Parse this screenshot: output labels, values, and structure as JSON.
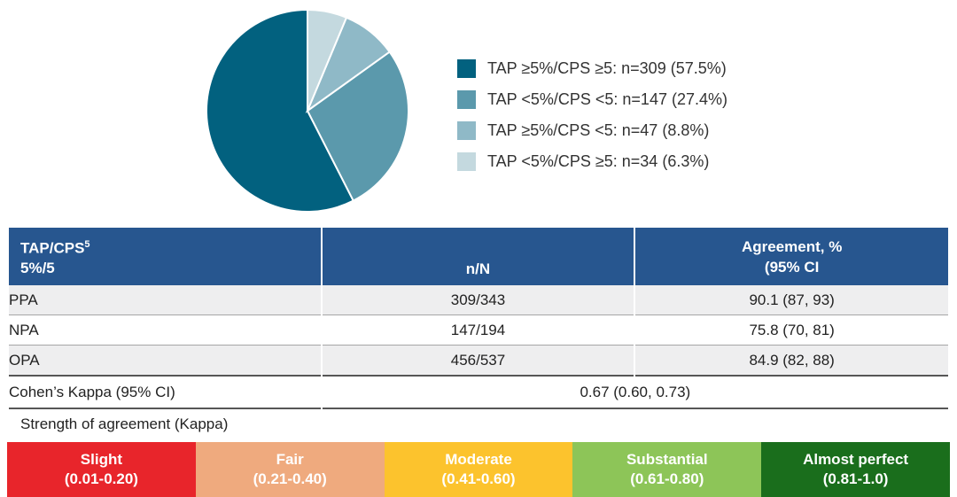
{
  "chart_data": {
    "type": "pie",
    "title": "",
    "legend_position": "right",
    "start_angle": "12-oclock",
    "direction": "counterclockwise",
    "slices": [
      {
        "label": "TAP ≥5%/CPS ≥5",
        "n": 309,
        "pct": 57.5,
        "color": "#02617f",
        "legend_text": "TAP ≥5%/CPS ≥5: n=309 (57.5%)"
      },
      {
        "label": "TAP <5%/CPS <5",
        "n": 147,
        "pct": 27.4,
        "color": "#5b99ac",
        "legend_text": "TAP <5%/CPS <5: n=147 (27.4%)"
      },
      {
        "label": "TAP ≥5%/CPS <5",
        "n": 47,
        "pct": 8.8,
        "color": "#8fb9c7",
        "legend_text": "TAP ≥5%/CPS <5: n=47 (8.8%)"
      },
      {
        "label": "TAP <5%/CPS ≥5",
        "n": 34,
        "pct": 6.3,
        "color": "#c4d9df",
        "legend_text": "TAP <5%/CPS ≥5: n=34 (6.3%)"
      }
    ]
  },
  "table": {
    "header": {
      "col1_line1": "TAP/CPS",
      "col1_superscript": "5",
      "col1_line2": "5%/5",
      "col2": "n/N",
      "col3_line1": "Agreement, %",
      "col3_line2": "(95% CI"
    },
    "rows": [
      {
        "label": "PPA",
        "n_over_N": "309/343",
        "agreement": "90.1 (87, 93)"
      },
      {
        "label": "NPA",
        "n_over_N": "147/194",
        "agreement": "75.8 (70, 81)"
      },
      {
        "label": "OPA",
        "n_over_N": "456/537",
        "agreement": "84.9 (82, 88)"
      }
    ],
    "kappa": {
      "label": "Cohen’s Kappa (95% CI)",
      "value": "0.67 (0.60, 0.73)"
    },
    "strength_label": "Strength of agreement (Kappa)"
  },
  "kappa_scale": {
    "segments": [
      {
        "name": "Slight",
        "range": "(0.01-0.20)",
        "color": "#e8252b"
      },
      {
        "name": "Fair",
        "range": "(0.21-0.40)",
        "color": "#efaa7e"
      },
      {
        "name": "Moderate",
        "range": "(0.41-0.60)",
        "color": "#fcc32d"
      },
      {
        "name": "Substantial",
        "range": "(0.61-0.80)",
        "color": "#8dc558"
      },
      {
        "name": "Almost perfect",
        "range": "(0.81-1.0)",
        "color": "#1a6e1c"
      }
    ]
  },
  "colors": {
    "header_bg": "#27568f",
    "row_alt_bg": "#eeeeef",
    "header_text": "#ffffff",
    "body_text": "#222222"
  }
}
